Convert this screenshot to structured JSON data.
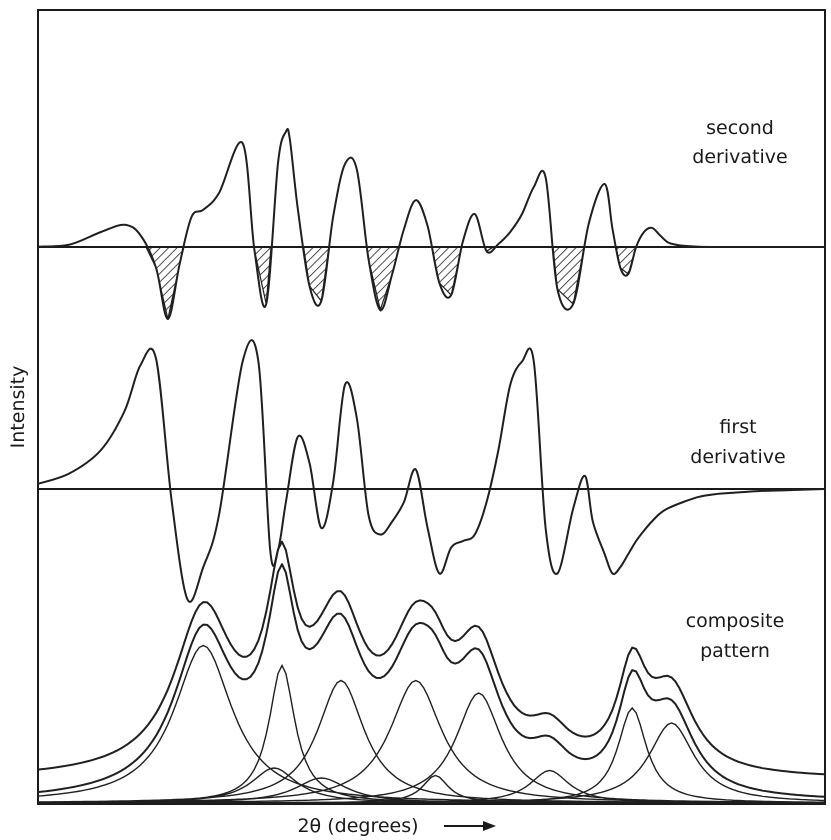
{
  "chart_data": {
    "type": "line",
    "title": "",
    "xlabel": "2θ (degrees)",
    "ylabel": "Intensity",
    "xlim": [
      0,
      100
    ],
    "grid": false,
    "panels": [
      {
        "name": "second derivative",
        "label_lines": [
          "second",
          "derivative"
        ],
        "shaded_negative": true,
        "x": [
          0,
          4,
          8,
          11,
          13,
          15,
          16.5,
          18,
          19.5,
          21,
          23,
          26,
          27.5,
          29,
          30.5,
          31.5,
          32,
          33,
          34.5,
          36,
          37.5,
          39,
          40.5,
          42,
          43.5,
          45,
          46.5,
          48,
          49.5,
          51,
          52.5,
          54,
          55.5,
          57,
          58.5,
          60,
          61.5,
          63,
          64.5,
          66,
          68,
          70,
          72,
          73,
          74,
          75,
          76,
          77,
          78,
          79,
          80,
          81,
          82,
          84,
          87,
          92,
          100
        ],
        "y": [
          0.05,
          0.4,
          2.5,
          3.7,
          2.0,
          -3.5,
          -12.0,
          -2.8,
          5.0,
          6.2,
          9.0,
          17.3,
          -0.5,
          -9.5,
          14.0,
          19.2,
          18.0,
          6.5,
          -6.5,
          -9.0,
          5.0,
          13.8,
          13.0,
          -2.0,
          -10.5,
          -4.5,
          3.0,
          7.8,
          3.5,
          -6.0,
          -8.0,
          1.0,
          5.5,
          -0.7,
          0.5,
          2.5,
          5.5,
          10.0,
          11.6,
          -7.0,
          -9.5,
          4.0,
          10.5,
          3.0,
          -3.5,
          -4.5,
          0.0,
          2.5,
          3.2,
          2.0,
          0.8,
          0.4,
          0.2,
          0.05,
          0,
          0,
          0
        ]
      },
      {
        "name": "first derivative",
        "label_lines": [
          "first",
          "derivative"
        ],
        "shaded_negative": false,
        "x": [
          0,
          4,
          8,
          11,
          13,
          15,
          17,
          19,
          21,
          23,
          26,
          28,
          29.5,
          30.5,
          31.5,
          33,
          34.5,
          36,
          37.5,
          39,
          40.5,
          42,
          43.5,
          45,
          46.5,
          48,
          49.5,
          51,
          52.5,
          54,
          55.5,
          57,
          58.5,
          60,
          61.5,
          63,
          64.5,
          66,
          68,
          69.5,
          70.5,
          72,
          73,
          74,
          75,
          76,
          77,
          78,
          79,
          80,
          82,
          84,
          86,
          88,
          92,
          96,
          100
        ],
        "y": [
          0.4,
          1.2,
          3.0,
          6.0,
          9.5,
          10.0,
          -1.0,
          -8.5,
          -6.0,
          -2.0,
          9.8,
          9.8,
          -4.7,
          -4.7,
          -1.0,
          4.0,
          2.0,
          -3.0,
          0.5,
          8.0,
          5.5,
          -2.0,
          -3.5,
          -2.5,
          -1.0,
          1.5,
          -3.0,
          -6.5,
          -4.5,
          -4.0,
          -3.5,
          -1.0,
          3.0,
          8.0,
          9.8,
          9.8,
          -3.0,
          -6.5,
          -1.5,
          1.0,
          -2.5,
          -5.0,
          -6.5,
          -6.0,
          -5.0,
          -4.0,
          -3.2,
          -2.5,
          -1.9,
          -1.5,
          -1.0,
          -0.6,
          -0.4,
          -0.3,
          -0.15,
          -0.08,
          0
        ]
      },
      {
        "name": "composite pattern",
        "label_lines": [
          "composite",
          "pattern"
        ],
        "composite_offset": 0.9,
        "components": [
          {
            "center": 21,
            "height": 6.3,
            "width": 4.5
          },
          {
            "center": 31,
            "height": 5.5,
            "width": 2.0
          },
          {
            "center": 38.5,
            "height": 4.9,
            "width": 3.6
          },
          {
            "center": 48,
            "height": 4.9,
            "width": 4.0
          },
          {
            "center": 56,
            "height": 4.4,
            "width": 3.5
          },
          {
            "center": 75.5,
            "height": 3.8,
            "width": 2.2
          },
          {
            "center": 80.5,
            "height": 3.2,
            "width": 3.5
          },
          {
            "center": 30,
            "height": 1.4,
            "width": 3.5
          },
          {
            "center": 36,
            "height": 1.0,
            "width": 4.0
          },
          {
            "center": 50.5,
            "height": 1.1,
            "width": 2.0
          },
          {
            "center": 65,
            "height": 1.3,
            "width": 3.0
          }
        ]
      }
    ]
  }
}
